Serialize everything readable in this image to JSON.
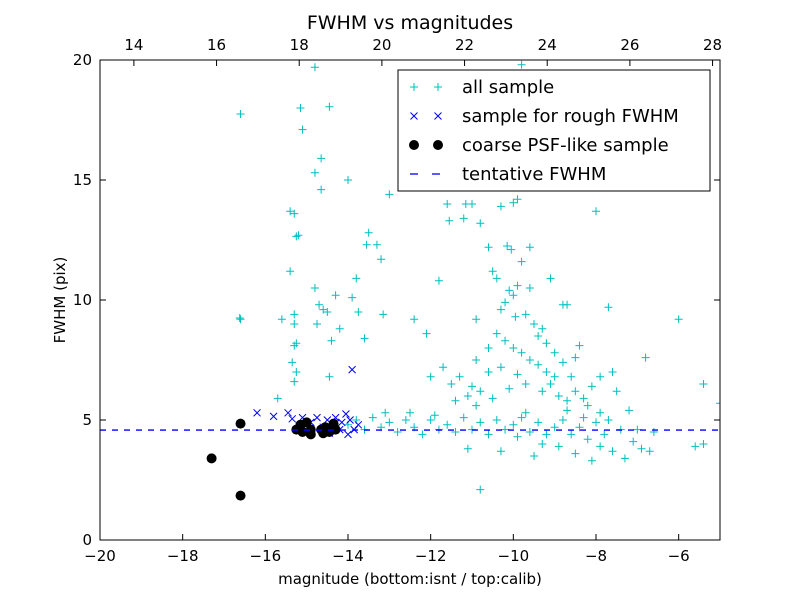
{
  "chart_data": {
    "type": "scatter",
    "title": "FWHM vs magnitudes",
    "xlabel": "magnitude (bottom:isnt / top:calib)",
    "ylabel": "FWHM (pix)",
    "xlim": [
      -20,
      -5
    ],
    "ylim": [
      0,
      20
    ],
    "xticks": [
      -20,
      -18,
      -16,
      -14,
      -12,
      -10,
      -8,
      -6
    ],
    "xtick_labels": [
      "−20",
      "−18",
      "−16",
      "−14",
      "−12",
      "−10",
      "−8",
      "−6"
    ],
    "yticks": [
      0,
      5,
      10,
      15,
      20
    ],
    "ytick_labels": [
      "0",
      "5",
      "10",
      "15",
      "20"
    ],
    "top_axis": {
      "offset": 33.18,
      "ticks": [
        14,
        16,
        18,
        20,
        22,
        24,
        26,
        28
      ],
      "tick_labels": [
        "14",
        "16",
        "18",
        "20",
        "22",
        "24",
        "26",
        "28"
      ]
    },
    "grid": false,
    "legend_placement": "top-right",
    "series": [
      {
        "name": "all sample",
        "marker": "+",
        "color": "#00bfbf",
        "points": [
          [
            -16.6,
            17.75
          ],
          [
            -16.6,
            9.2
          ],
          [
            -16.62,
            9.25
          ],
          [
            -15.4,
            13.7
          ],
          [
            -15.3,
            13.6
          ],
          [
            -15.2,
            12.7
          ],
          [
            -15.25,
            12.65
          ],
          [
            -15.4,
            11.2
          ],
          [
            -15.3,
            9.4
          ],
          [
            -15.3,
            9.0
          ],
          [
            -15.25,
            8.2
          ],
          [
            -15.3,
            8.1
          ],
          [
            -15.35,
            7.4
          ],
          [
            -15.25,
            7.0
          ],
          [
            -15.3,
            6.6
          ],
          [
            -15.7,
            5.9
          ],
          [
            -15.6,
            9.2
          ],
          [
            -15.15,
            18.0
          ],
          [
            -15.1,
            17.1
          ],
          [
            -14.8,
            19.7
          ],
          [
            -14.8,
            15.3
          ],
          [
            -14.65,
            15.9
          ],
          [
            -14.65,
            14.6
          ],
          [
            -14.45,
            18.05
          ],
          [
            -14.8,
            10.5
          ],
          [
            -14.7,
            9.8
          ],
          [
            -14.6,
            9.6
          ],
          [
            -14.75,
            9.0
          ],
          [
            -14.5,
            9.5
          ],
          [
            -14.4,
            8.3
          ],
          [
            -14.3,
            10.2
          ],
          [
            -14.2,
            8.8
          ],
          [
            -14.45,
            6.8
          ],
          [
            -14.0,
            15.0
          ],
          [
            -13.5,
            12.8
          ],
          [
            -13.55,
            12.3
          ],
          [
            -13.3,
            12.3
          ],
          [
            -13.2,
            11.7
          ],
          [
            -13.0,
            14.4
          ],
          [
            -13.8,
            10.9
          ],
          [
            -13.9,
            10.1
          ],
          [
            -13.75,
            9.5
          ],
          [
            -13.6,
            8.4
          ],
          [
            -13.15,
            9.4
          ],
          [
            -12.4,
            9.2
          ],
          [
            -12.1,
            8.6
          ],
          [
            -11.8,
            10.8
          ],
          [
            -11.6,
            14.0
          ],
          [
            -11.55,
            13.3
          ],
          [
            -11.2,
            13.4
          ],
          [
            -11.0,
            14.0
          ],
          [
            -10.8,
            13.2
          ],
          [
            -10.3,
            13.9
          ],
          [
            -10.0,
            14.05
          ],
          [
            -9.9,
            14.2
          ],
          [
            -10.6,
            12.2
          ],
          [
            -10.15,
            12.25
          ],
          [
            -10.05,
            12.1
          ],
          [
            -9.6,
            12.2
          ],
          [
            -10.5,
            11.2
          ],
          [
            -10.4,
            10.9
          ],
          [
            -9.8,
            11.6
          ],
          [
            -9.1,
            10.9
          ],
          [
            -8.8,
            9.8
          ],
          [
            -8.0,
            13.7
          ],
          [
            -7.7,
            9.7
          ],
          [
            -6.0,
            9.2
          ],
          [
            -6.8,
            7.6
          ],
          [
            -5.4,
            6.5
          ],
          [
            -5.0,
            5.7
          ],
          [
            -9.8,
            19.8
          ],
          [
            -11.15,
            14.0
          ],
          [
            -11.3,
            6.8
          ],
          [
            -11.0,
            6.4
          ],
          [
            -10.9,
            9.2
          ],
          [
            -10.6,
            8.0
          ],
          [
            -10.2,
            9.9
          ],
          [
            -10.1,
            10.4
          ],
          [
            -10.0,
            10.2
          ],
          [
            -9.9,
            10.6
          ],
          [
            -10.3,
            9.6
          ],
          [
            -9.95,
            9.3
          ],
          [
            -9.7,
            9.4
          ],
          [
            -9.5,
            9.0
          ],
          [
            -9.3,
            8.8
          ],
          [
            -10.4,
            8.6
          ],
          [
            -10.2,
            8.3
          ],
          [
            -10.0,
            8.0
          ],
          [
            -9.8,
            7.8
          ],
          [
            -9.6,
            7.5
          ],
          [
            -9.4,
            7.3
          ],
          [
            -9.2,
            7.0
          ],
          [
            -9.0,
            6.8
          ],
          [
            -9.7,
            6.5
          ],
          [
            -9.9,
            6.9
          ],
          [
            -10.3,
            7.2
          ],
          [
            -10.6,
            7.0
          ],
          [
            -10.8,
            6.2
          ],
          [
            -11.1,
            6.0
          ],
          [
            -11.4,
            5.8
          ],
          [
            -10.9,
            5.6
          ],
          [
            -10.5,
            5.9
          ],
          [
            -10.1,
            6.3
          ],
          [
            -9.3,
            6.2
          ],
          [
            -9.1,
            6.5
          ],
          [
            -8.9,
            6.0
          ],
          [
            -8.7,
            5.8
          ],
          [
            -8.5,
            6.2
          ],
          [
            -8.3,
            5.9
          ],
          [
            -8.1,
            6.4
          ],
          [
            -8.6,
            6.8
          ],
          [
            -8.8,
            7.4
          ],
          [
            -9.0,
            7.8
          ],
          [
            -9.2,
            8.2
          ],
          [
            -9.4,
            8.5
          ],
          [
            -8.5,
            7.6
          ],
          [
            -8.2,
            5.6
          ],
          [
            -7.9,
            5.3
          ],
          [
            -7.6,
            7.0
          ],
          [
            -7.5,
            6.2
          ],
          [
            -7.2,
            5.4
          ],
          [
            -7.9,
            6.8
          ],
          [
            -8.4,
            8.1
          ],
          [
            -8.7,
            9.8
          ],
          [
            -9.6,
            10.5
          ],
          [
            -10.9,
            7.5
          ],
          [
            -11.5,
            6.5
          ],
          [
            -11.7,
            7.2
          ],
          [
            -12.0,
            6.8
          ],
          [
            -14.0,
            4.8
          ],
          [
            -13.8,
            5.0
          ],
          [
            -13.6,
            4.6
          ],
          [
            -13.4,
            5.1
          ],
          [
            -13.2,
            4.7
          ],
          [
            -13.0,
            4.9
          ],
          [
            -12.8,
            4.5
          ],
          [
            -12.6,
            5.0
          ],
          [
            -12.4,
            4.7
          ],
          [
            -12.2,
            4.4
          ],
          [
            -12.0,
            5.0
          ],
          [
            -11.8,
            4.6
          ],
          [
            -11.6,
            4.8
          ],
          [
            -11.4,
            4.5
          ],
          [
            -11.2,
            5.1
          ],
          [
            -11.1,
            3.8
          ],
          [
            -11.0,
            4.6
          ],
          [
            -10.8,
            2.1
          ],
          [
            -10.8,
            4.9
          ],
          [
            -10.6,
            4.4
          ],
          [
            -10.4,
            5.0
          ],
          [
            -10.2,
            4.6
          ],
          [
            -10.0,
            4.8
          ],
          [
            -9.9,
            4.3
          ],
          [
            -9.8,
            5.1
          ],
          [
            -9.6,
            4.5
          ],
          [
            -9.4,
            4.9
          ],
          [
            -9.3,
            4.0
          ],
          [
            -9.2,
            4.4
          ],
          [
            -9.0,
            4.7
          ],
          [
            -8.9,
            3.9
          ],
          [
            -8.8,
            5.0
          ],
          [
            -8.6,
            4.4
          ],
          [
            -8.5,
            3.6
          ],
          [
            -8.4,
            4.7
          ],
          [
            -8.2,
            4.2
          ],
          [
            -8.0,
            4.9
          ],
          [
            -7.9,
            3.9
          ],
          [
            -7.8,
            4.4
          ],
          [
            -7.6,
            3.7
          ],
          [
            -7.4,
            4.6
          ],
          [
            -7.3,
            3.4
          ],
          [
            -7.1,
            4.1
          ],
          [
            -6.9,
            3.8
          ],
          [
            -6.7,
            3.7
          ],
          [
            -6.6,
            4.5
          ],
          [
            -5.6,
            3.9
          ],
          [
            -5.4,
            4.0
          ],
          [
            -12.5,
            5.3
          ],
          [
            -11.9,
            5.2
          ],
          [
            -13.1,
            5.3
          ],
          [
            -9.7,
            5.3
          ],
          [
            -8.7,
            5.4
          ],
          [
            -8.3,
            5.1
          ],
          [
            -7.7,
            5.0
          ],
          [
            -7.0,
            4.6
          ],
          [
            -10.3,
            3.7
          ],
          [
            -9.5,
            3.5
          ],
          [
            -8.1,
            3.3
          ]
        ]
      },
      {
        "name": "sample for rough FWHM",
        "marker": "x",
        "color": "#0000ff",
        "points": [
          [
            -16.2,
            5.3
          ],
          [
            -15.8,
            5.15
          ],
          [
            -15.45,
            5.3
          ],
          [
            -15.35,
            5.05
          ],
          [
            -15.1,
            5.1
          ],
          [
            -14.9,
            4.9
          ],
          [
            -14.75,
            5.1
          ],
          [
            -14.5,
            5.0
          ],
          [
            -14.3,
            5.1
          ],
          [
            -14.15,
            4.9
          ],
          [
            -14.05,
            5.25
          ],
          [
            -13.95,
            5.0
          ],
          [
            -13.85,
            4.6
          ],
          [
            -14.0,
            4.4
          ],
          [
            -14.2,
            4.6
          ],
          [
            -14.45,
            4.45
          ],
          [
            -14.6,
            4.7
          ],
          [
            -15.0,
            4.6
          ],
          [
            -13.9,
            7.1
          ],
          [
            -13.75,
            4.8
          ]
        ]
      },
      {
        "name": "coarse PSF-like sample",
        "marker": "o",
        "color": "#000000",
        "points": [
          [
            -17.3,
            3.4
          ],
          [
            -16.6,
            4.85
          ],
          [
            -16.6,
            1.85
          ],
          [
            -15.15,
            4.8
          ],
          [
            -15.0,
            4.9
          ],
          [
            -14.9,
            4.6
          ],
          [
            -15.1,
            4.5
          ],
          [
            -15.25,
            4.6
          ],
          [
            -14.65,
            4.6
          ],
          [
            -14.55,
            4.7
          ],
          [
            -14.45,
            4.5
          ],
          [
            -14.35,
            4.85
          ],
          [
            -14.3,
            4.6
          ],
          [
            -14.6,
            4.45
          ],
          [
            -14.9,
            4.4
          ]
        ]
      }
    ],
    "hline": {
      "name": "tentative FWHM",
      "y": 4.58,
      "style": "dashed",
      "color": "#0000ff"
    }
  }
}
